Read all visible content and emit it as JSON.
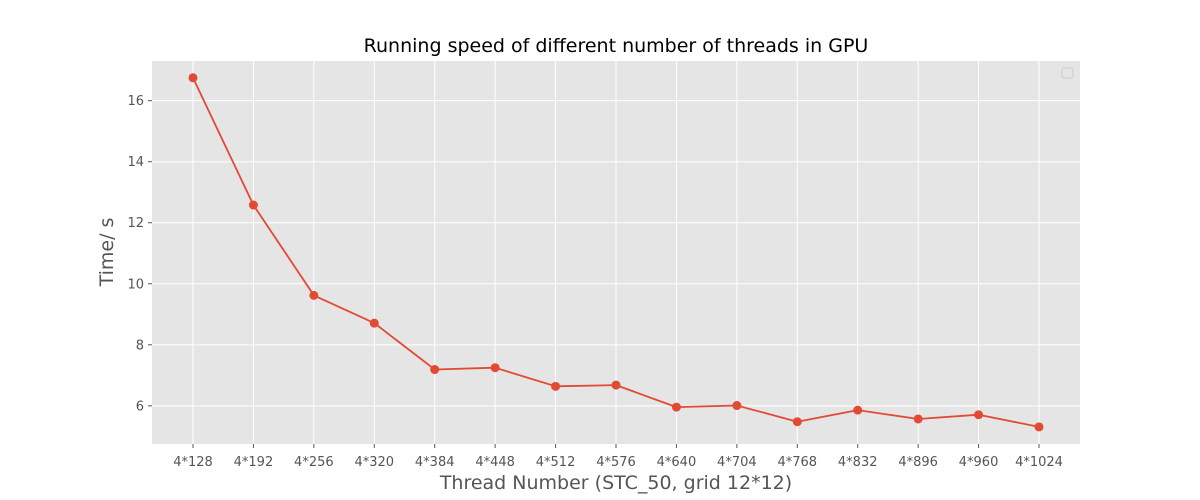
{
  "chart_data": {
    "type": "line",
    "title": "Running speed of different number of threads in GPU",
    "xlabel": "Thread Number (STC_50, grid 12*12)",
    "ylabel": "Time/ s",
    "categories": [
      "4*128",
      "4*192",
      "4*256",
      "4*320",
      "4*384",
      "4*448",
      "4*512",
      "4*576",
      "4*640",
      "4*704",
      "4*768",
      "4*832",
      "4*896",
      "4*960",
      "4*1024"
    ],
    "series": [
      {
        "values": [
          16.75,
          12.58,
          9.62,
          8.71,
          7.19,
          7.25,
          6.64,
          6.68,
          5.96,
          6.01,
          5.48,
          5.86,
          5.57,
          5.71,
          5.31
        ],
        "color": "#E24A33"
      }
    ],
    "ylim": [
      4.75,
      17.3
    ],
    "yticks": [
      6,
      8,
      10,
      12,
      14,
      16
    ],
    "grid": true,
    "legend": "top-right",
    "style": {
      "background": "#E5E5E5",
      "grid_color": "#FFFFFF",
      "line_color": "#E24A33"
    }
  }
}
